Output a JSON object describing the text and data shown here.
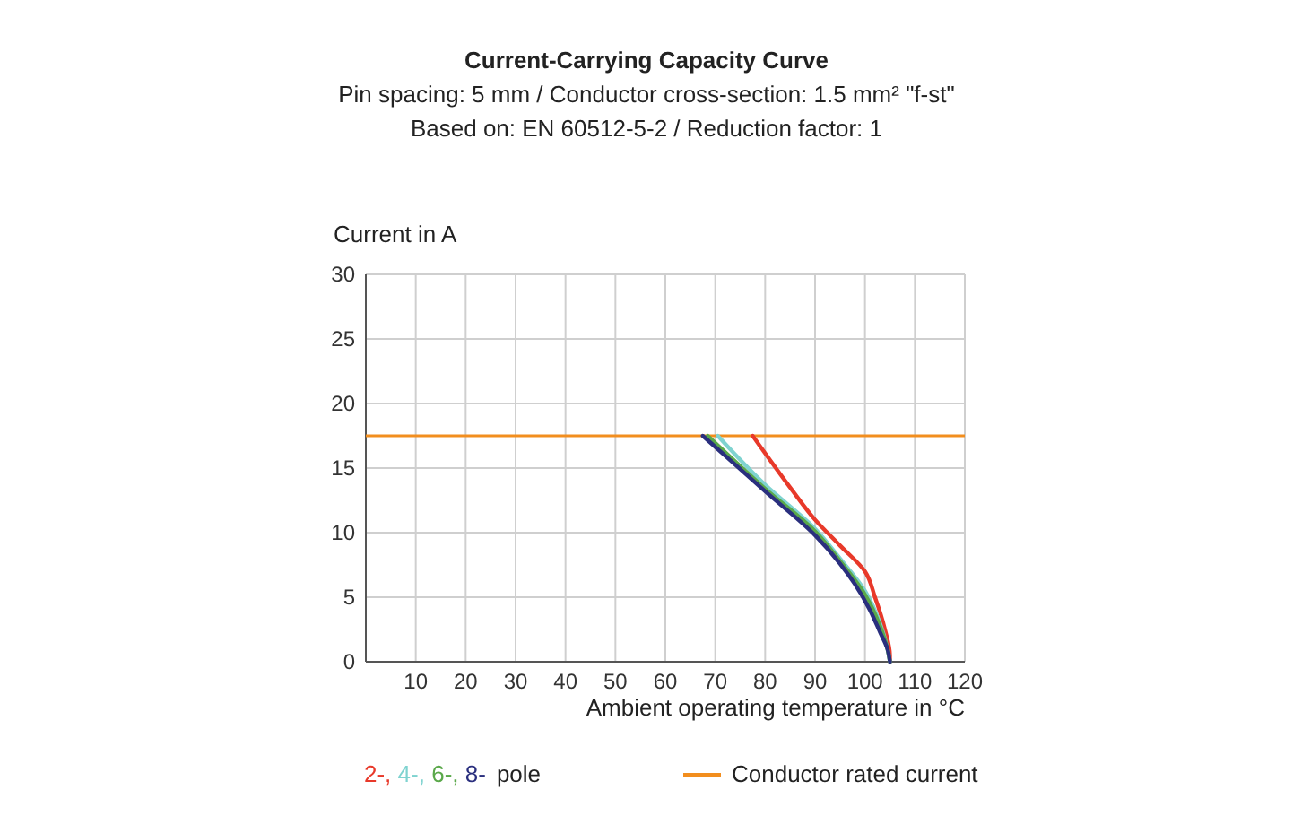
{
  "chart_data": {
    "type": "line",
    "title": "Current-Carrying Capacity Curve",
    "subtitle": "Pin spacing: 5 mm / Conductor cross-section: 1.5 mm² \"f-st\"\nBased on: EN 60512-5-2 / Reduction factor: 1",
    "xlabel": "Ambient operating temperature in °C",
    "ylabel": "Current in A",
    "legend_title": "pole",
    "xlim": [
      0,
      120
    ],
    "ylim": [
      0,
      30
    ],
    "xticks": [
      {
        "value": 0,
        "label": null
      },
      10,
      20,
      30,
      40,
      50,
      60,
      70,
      80,
      90,
      100,
      110,
      120
    ],
    "yticks": [
      0,
      5,
      10,
      15,
      20,
      25,
      30
    ],
    "grid": true,
    "legend": "bottom",
    "marker": "none",
    "line_style": "solid",
    "series": [
      {
        "name": "2-,",
        "color": "#e8392a",
        "x": [
          77.5,
          85,
          90,
          95,
          100,
          102,
          104,
          105,
          105
        ],
        "values": [
          17.5,
          13.5,
          11,
          9,
          7,
          5,
          2.5,
          0.5,
          0
        ]
      },
      {
        "name": "4-,",
        "color": "#7fd3d0",
        "x": [
          70.5,
          80,
          90,
          95,
          100,
          103,
          104.5,
          105
        ],
        "values": [
          17.5,
          13.7,
          10.3,
          8,
          5.5,
          3,
          1,
          0
        ]
      },
      {
        "name": "6-,",
        "color": "#5aa84a",
        "x": [
          68.5,
          80,
          90,
          95,
          100,
          103,
          104.5,
          105
        ],
        "values": [
          17.5,
          13.4,
          10.1,
          7.8,
          5.2,
          2.8,
          1,
          0
        ]
      },
      {
        "name": "8-",
        "color": "#2a2f7e",
        "x": [
          67.5,
          80,
          90,
          95,
          98,
          101,
          103,
          104.5,
          105
        ],
        "values": [
          17.5,
          13.2,
          9.8,
          7.6,
          6,
          4,
          2.3,
          1,
          0
        ]
      }
    ],
    "ref_lines": [
      {
        "axis": "y",
        "value": 17.5,
        "label": "Conductor rated current",
        "color": "#f28e1e",
        "line_style": "solid"
      }
    ]
  }
}
